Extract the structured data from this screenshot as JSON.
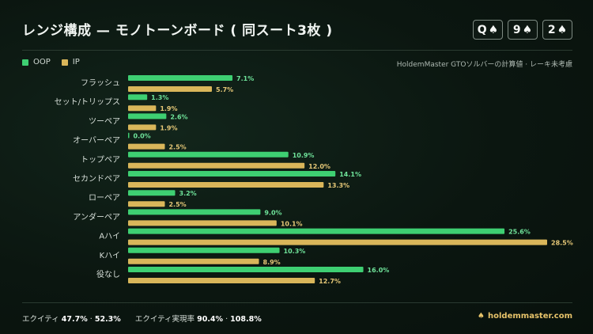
{
  "title": "レンジ構成 — モノトーンボード ( 同スート3枚 )",
  "board_cards": [
    {
      "rank": "Q",
      "suit": "♠"
    },
    {
      "rank": "9",
      "suit": "♠"
    },
    {
      "rank": "2",
      "suit": "♠"
    }
  ],
  "note": "HoldemMaster GTOソルバーの計算値 · レーキ未考慮",
  "colors": {
    "oop": "#3ecf72",
    "ip": "#d9b65a"
  },
  "chart_data": {
    "type": "bar",
    "orientation": "horizontal",
    "categories": [
      "フラッシュ",
      "セット/トリップス",
      "ツーペア",
      "オーバーペア",
      "トップペア",
      "セカンドペア",
      "ローペア",
      "アンダーペア",
      "Aハイ",
      "Kハイ",
      "役なし"
    ],
    "series": [
      {
        "name": "OOP",
        "values": [
          7.1,
          1.3,
          2.6,
          0.0,
          10.9,
          14.1,
          3.2,
          9.0,
          25.6,
          10.3,
          16.0
        ]
      },
      {
        "name": "IP",
        "values": [
          5.7,
          1.9,
          1.9,
          2.5,
          12.0,
          13.3,
          2.5,
          10.1,
          28.5,
          8.9,
          12.7
        ]
      }
    ],
    "value_suffix": "%",
    "legend": "top-left"
  },
  "footer": {
    "equity_label": "エクイティ",
    "equity_oop": "47.7%",
    "equity_sep": "·",
    "equity_ip": "52.3%",
    "realization_label": "エクイティ実現率",
    "realization_oop": "90.4%",
    "realization_sep": "·",
    "realization_ip": "108.8%",
    "brand": "holdemmaster.com",
    "brand_icon": "spade-icon"
  }
}
